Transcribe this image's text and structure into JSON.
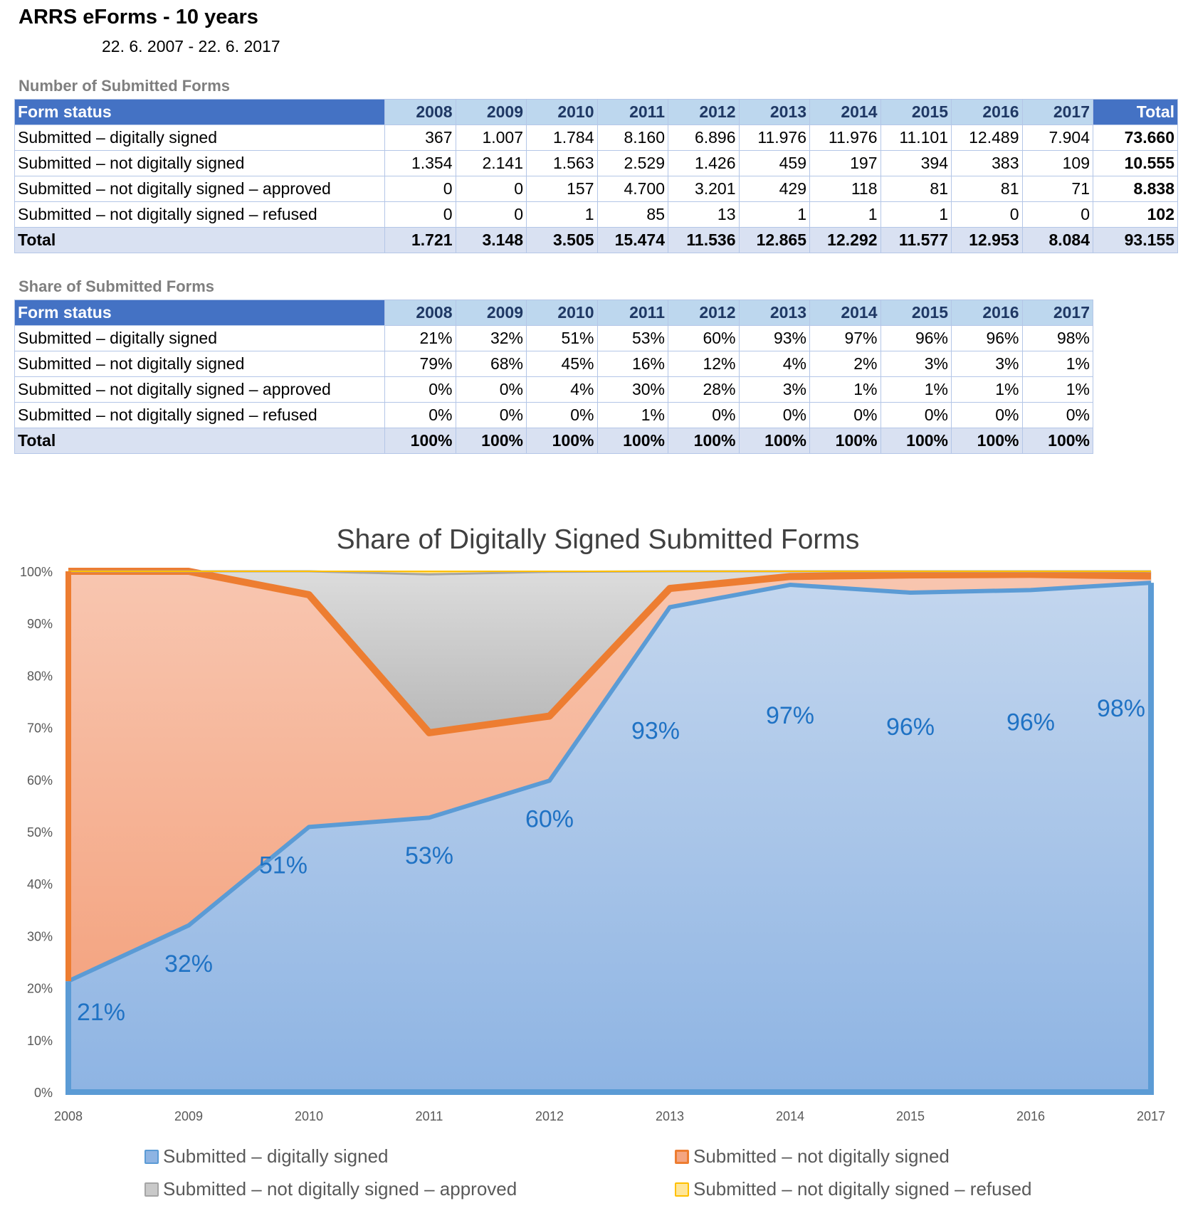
{
  "header": {
    "title": "ARRS eForms - 10 years",
    "date_range": "22. 6. 2007 -  22. 6. 2017"
  },
  "count_table": {
    "section_title": "Number of Submitted Forms",
    "status_header": "Form status",
    "years": [
      "2008",
      "2009",
      "2010",
      "2011",
      "2012",
      "2013",
      "2014",
      "2015",
      "2016",
      "2017"
    ],
    "total_header": "Total",
    "rows": [
      {
        "label": "Submitted – digitally signed",
        "values": [
          "367",
          "1.007",
          "1.784",
          "8.160",
          "6.896",
          "11.976",
          "11.976",
          "11.101",
          "12.489",
          "7.904"
        ],
        "total": "73.660"
      },
      {
        "label": "Submitted – not digitally signed",
        "values": [
          "1.354",
          "2.141",
          "1.563",
          "2.529",
          "1.426",
          "459",
          "197",
          "394",
          "383",
          "109"
        ],
        "total": "10.555"
      },
      {
        "label": "Submitted – not digitally signed – approved",
        "values": [
          "0",
          "0",
          "157",
          "4.700",
          "3.201",
          "429",
          "118",
          "81",
          "81",
          "71"
        ],
        "total": "8.838"
      },
      {
        "label": "Submitted – not digitally signed – refused",
        "values": [
          "0",
          "0",
          "1",
          "85",
          "13",
          "1",
          "1",
          "1",
          "0",
          "0"
        ],
        "total": "102"
      }
    ],
    "total_row": {
      "label": "Total",
      "values": [
        "1.721",
        "3.148",
        "3.505",
        "15.474",
        "11.536",
        "12.865",
        "12.292",
        "11.577",
        "12.953",
        "8.084"
      ],
      "total": "93.155"
    }
  },
  "share_table": {
    "section_title": "Share of Submitted Forms",
    "status_header": "Form status",
    "years": [
      "2008",
      "2009",
      "2010",
      "2011",
      "2012",
      "2013",
      "2014",
      "2015",
      "2016",
      "2017"
    ],
    "rows": [
      {
        "label": "Submitted – digitally signed",
        "values": [
          "21%",
          "32%",
          "51%",
          "53%",
          "60%",
          "93%",
          "97%",
          "96%",
          "96%",
          "98%"
        ]
      },
      {
        "label": "Submitted – not digitally signed",
        "values": [
          "79%",
          "68%",
          "45%",
          "16%",
          "12%",
          "4%",
          "2%",
          "3%",
          "3%",
          "1%"
        ]
      },
      {
        "label": "Submitted – not digitally signed – approved",
        "values": [
          "0%",
          "0%",
          "4%",
          "30%",
          "28%",
          "3%",
          "1%",
          "1%",
          "1%",
          "1%"
        ]
      },
      {
        "label": "Submitted – not digitally signed – refused",
        "values": [
          "0%",
          "0%",
          "0%",
          "1%",
          "0%",
          "0%",
          "0%",
          "0%",
          "0%",
          "0%"
        ]
      }
    ],
    "total_row": {
      "label": "Total",
      "values": [
        "100%",
        "100%",
        "100%",
        "100%",
        "100%",
        "100%",
        "100%",
        "100%",
        "100%",
        "100%"
      ]
    }
  },
  "chart_data": {
    "type": "area",
    "stacked": true,
    "title": "Share of Digitally Signed Submitted Forms",
    "xlabel": "",
    "ylabel": "",
    "x": [
      2008,
      2009,
      2010,
      2011,
      2012,
      2013,
      2014,
      2015,
      2016,
      2017
    ],
    "ylim": [
      0,
      100
    ],
    "yticks": [
      "0%",
      "10%",
      "20%",
      "30%",
      "40%",
      "50%",
      "60%",
      "70%",
      "80%",
      "90%",
      "100%"
    ],
    "grid": "vertical",
    "legend_position": "bottom",
    "series": [
      {
        "name": "Submitted – digitally signed",
        "color": "#5b9bd5",
        "values": [
          21.3,
          32.0,
          50.9,
          52.7,
          59.8,
          93.1,
          97.4,
          95.9,
          96.4,
          97.8
        ]
      },
      {
        "name": "Submitted – not digitally signed",
        "color": "#ed7d31",
        "values": [
          78.7,
          68.0,
          44.6,
          16.3,
          12.4,
          3.6,
          1.6,
          3.4,
          3.0,
          1.3
        ]
      },
      {
        "name": "Submitted – not digitally signed – approved",
        "color": "#a5a5a5",
        "values": [
          0.0,
          0.0,
          4.5,
          30.4,
          27.7,
          3.3,
          1.0,
          0.7,
          0.6,
          0.9
        ]
      },
      {
        "name": "Submitted – not digitally signed – refused",
        "color": "#ffc000",
        "values": [
          0.0,
          0.0,
          0.0,
          0.6,
          0.1,
          0.0,
          0.0,
          0.0,
          0.0,
          0.0
        ]
      }
    ],
    "data_labels": [
      "21%",
      "32%",
      "51%",
      "53%",
      "60%",
      "93%",
      "97%",
      "96%",
      "96%",
      "98%"
    ]
  }
}
